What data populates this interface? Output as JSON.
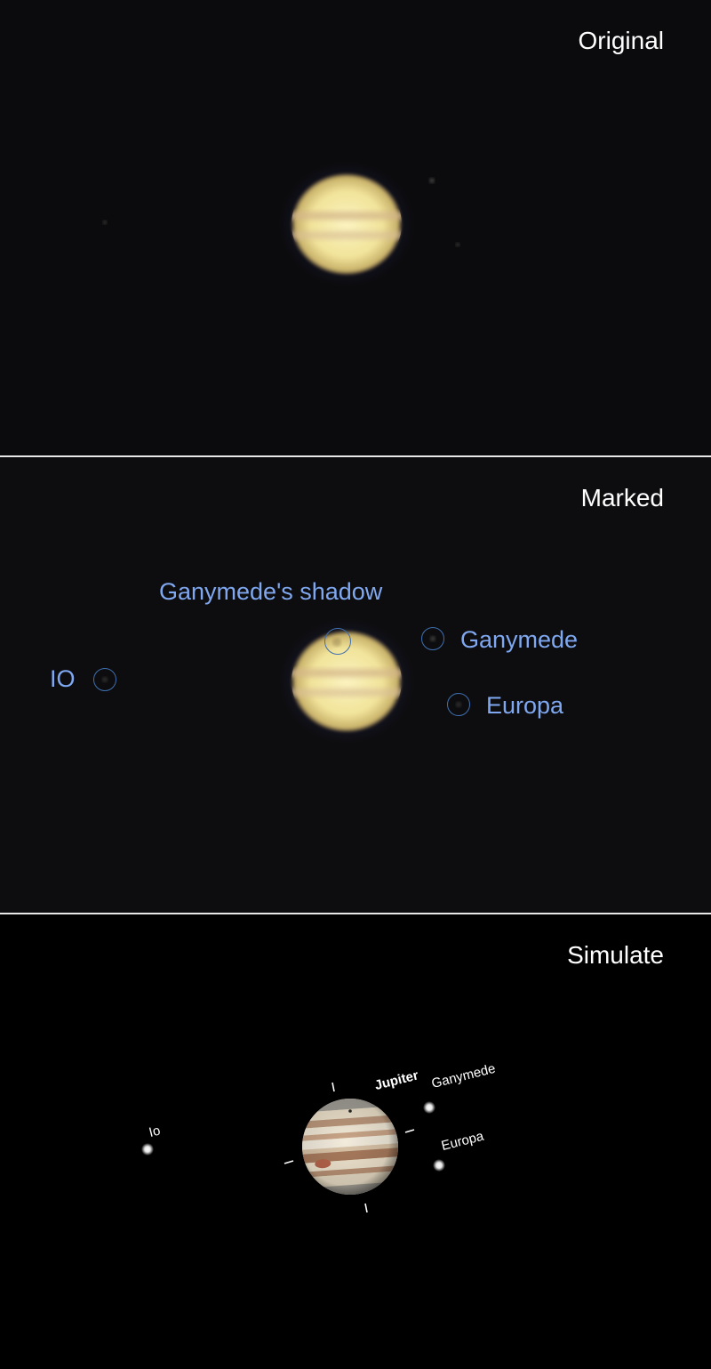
{
  "panels": {
    "original": {
      "title": "Original"
    },
    "marked": {
      "title": "Marked",
      "labels": {
        "ganymede_shadow": "Ganymede's shadow",
        "ganymede": "Ganymede",
        "europa": "Europa",
        "io": "IO"
      }
    },
    "simulate": {
      "title": "Simulate",
      "labels": {
        "jupiter": "Jupiter",
        "ganymede": "Ganymede",
        "europa": "Europa",
        "io": "Io"
      }
    }
  },
  "colors": {
    "label_blue": "#7fa8f0",
    "ring_blue": "#3f6fb0",
    "planet_yellow": "#f4eaa6",
    "separator": "#e8e8e8"
  }
}
